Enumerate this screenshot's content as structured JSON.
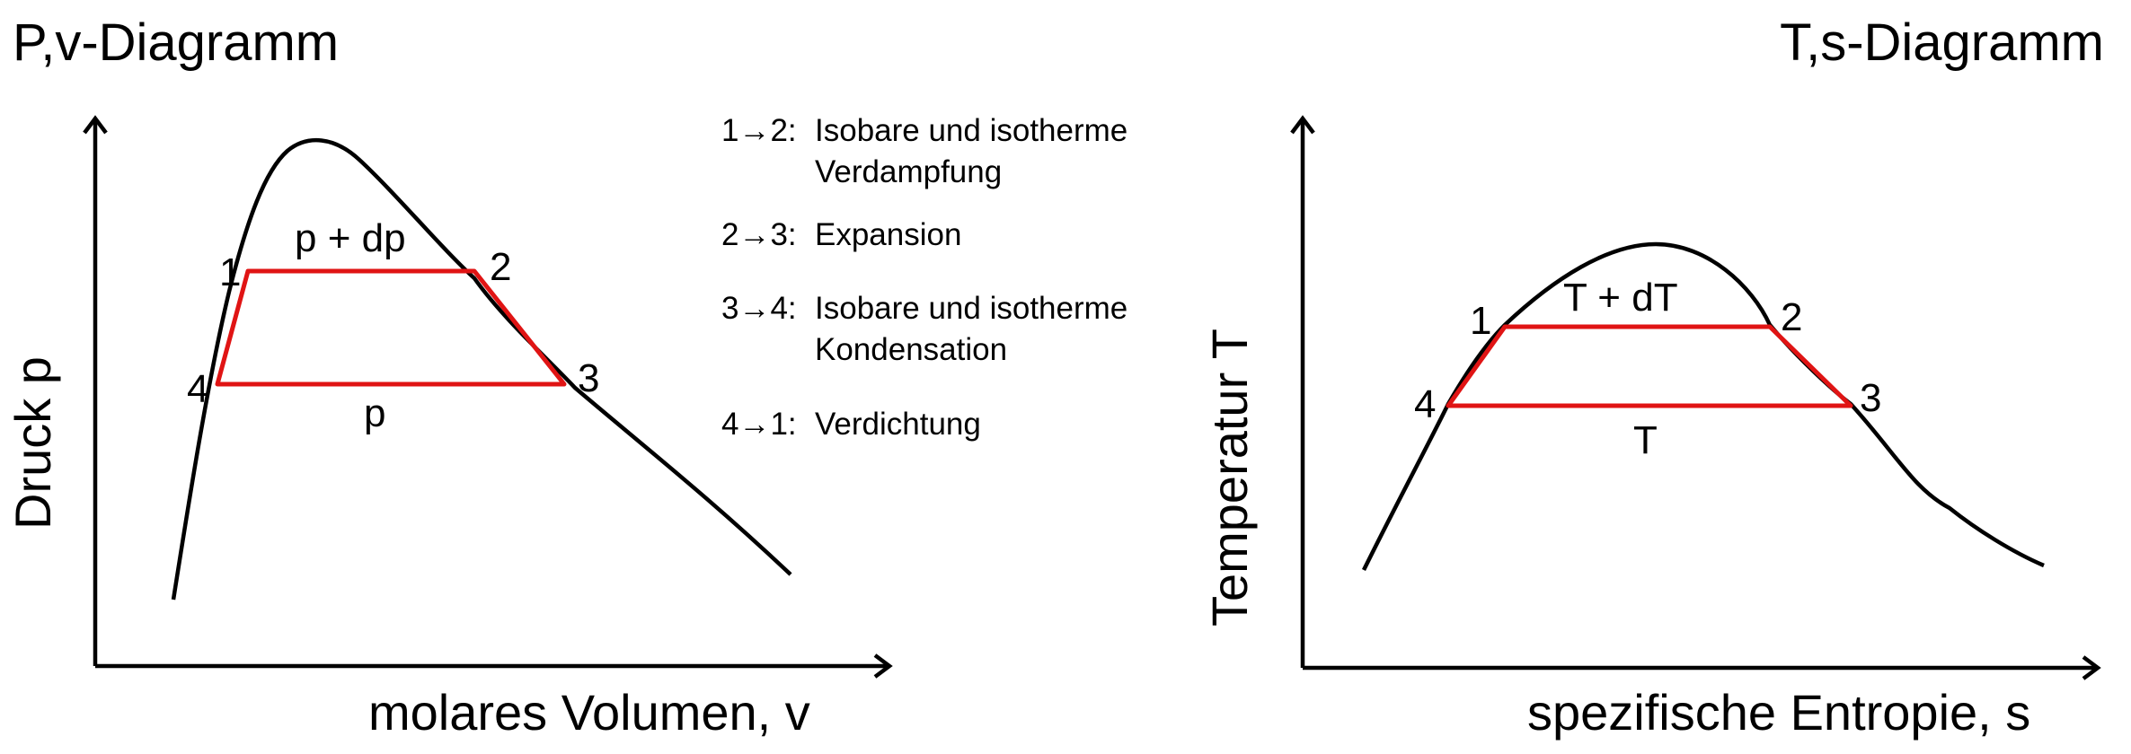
{
  "pv": {
    "title": "P,v-Diagramm",
    "xlabel": "molares Volumen, v",
    "ylabel": "Druck p",
    "upper_region": "p + dp",
    "lower_region": "p",
    "points": [
      "1",
      "2",
      "3",
      "4"
    ]
  },
  "ts": {
    "title": "T,s-Diagramm",
    "xlabel": "spezifische Entropie, s",
    "ylabel": "Temperatur T",
    "upper_region": "T + dT",
    "lower_region": "T",
    "points": [
      "1",
      "2",
      "3",
      "4"
    ]
  },
  "legend": [
    {
      "prefix": "1→2:",
      "line1": "Isobare und isotherme",
      "line2": "Verdampfung"
    },
    {
      "prefix": "2→3:",
      "line1": "Expansion",
      "line2": ""
    },
    {
      "prefix": "3→4:",
      "line1": "Isobare und isotherme",
      "line2": "Kondensation"
    },
    {
      "prefix": "4→1:",
      "line1": "Verdichtung",
      "line2": ""
    }
  ],
  "colors": {
    "cycle": "#e01414",
    "curve": "#000000"
  }
}
